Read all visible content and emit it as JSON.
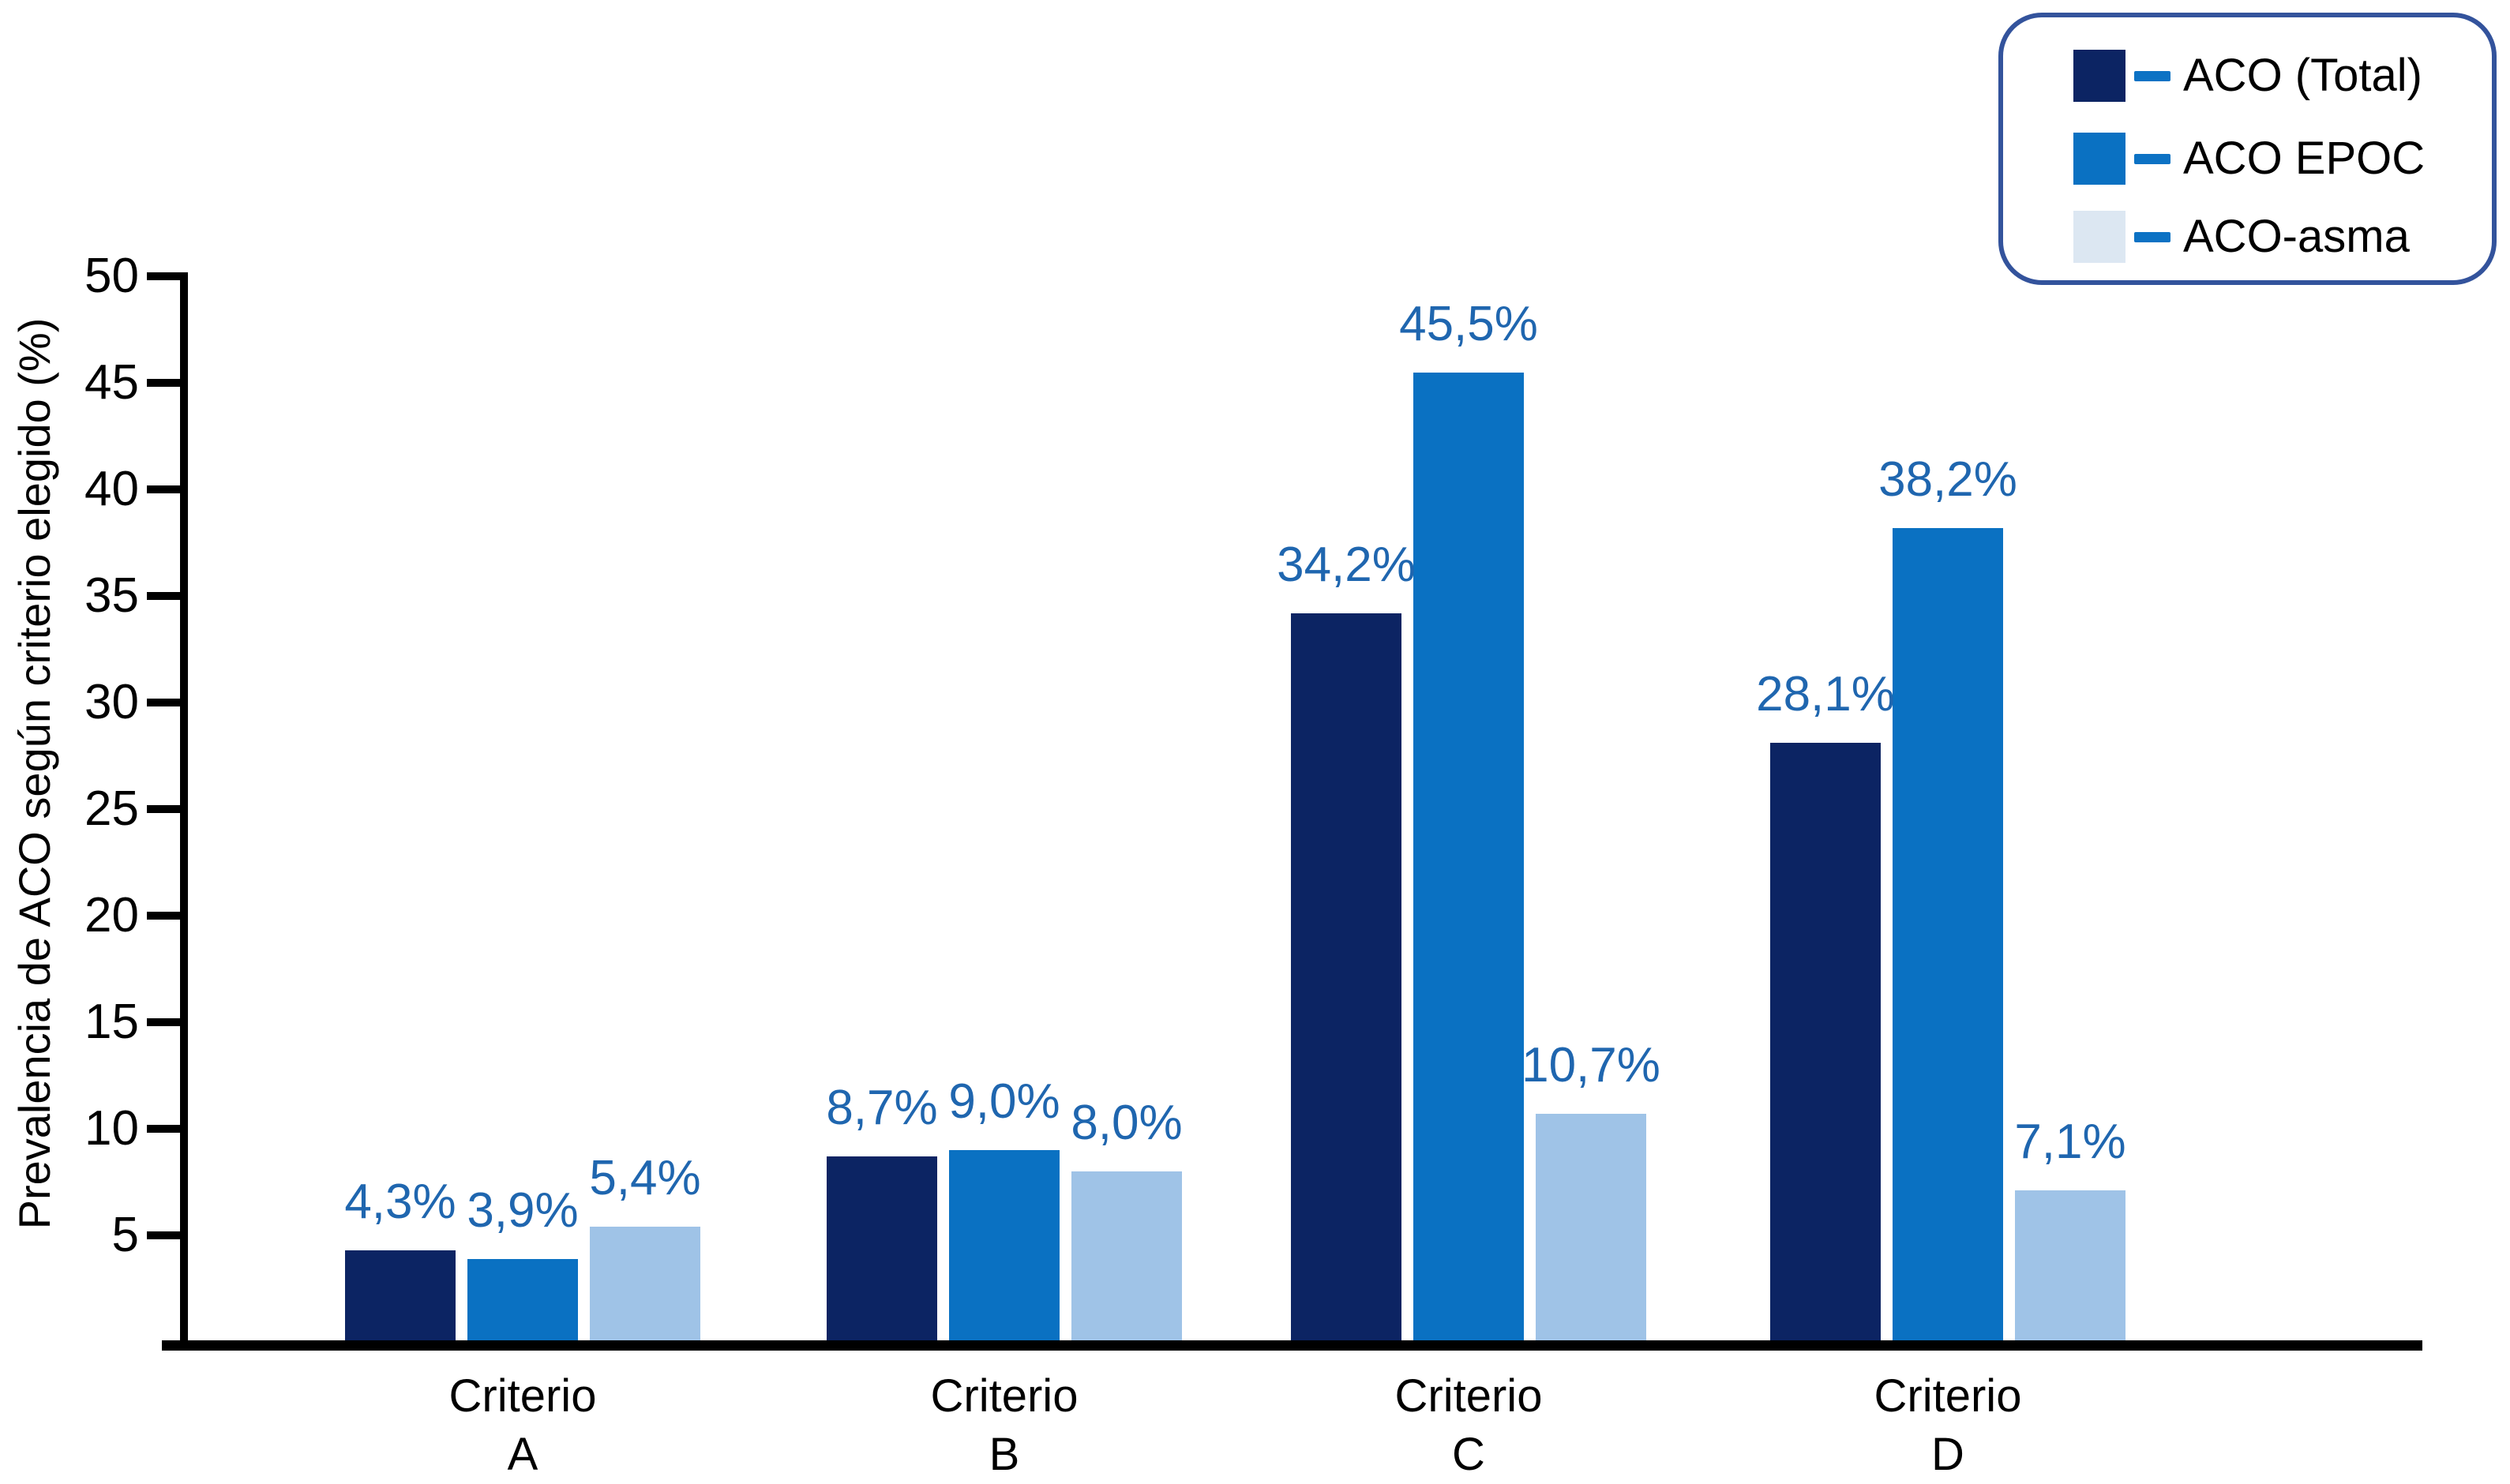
{
  "chart_data": {
    "type": "bar",
    "title": "",
    "xlabel": "",
    "ylabel": "Prevalencia de ACO según criterio elegido (%)",
    "ylim": [
      0,
      50
    ],
    "yticks": [
      5,
      10,
      15,
      20,
      25,
      30,
      35,
      40,
      45,
      50
    ],
    "grid": false,
    "legend_position": "top-right",
    "categories": [
      {
        "line1": "Criterio",
        "line2": "A"
      },
      {
        "line1": "Criterio",
        "line2": "B"
      },
      {
        "line1": "Criterio",
        "line2": "C"
      },
      {
        "line1": "Criterio",
        "line2": "D"
      }
    ],
    "series": [
      {
        "name": "ACO (Total)",
        "values": [
          4.3,
          8.7,
          34.2,
          28.1
        ],
        "labels": [
          "4,3%",
          "8,7%",
          "34,2%",
          "28,1%"
        ],
        "bar_color": "#0c2463",
        "legend_swatch_color": "#0c2463"
      },
      {
        "name": "ACO EPOC",
        "values": [
          3.9,
          9.0,
          45.5,
          38.2
        ],
        "labels": [
          "3,9%",
          "9,0%",
          "45,5%",
          "38,2%"
        ],
        "bar_color": "#0a71c2",
        "legend_swatch_color": "#0a71c2"
      },
      {
        "name": "ACO-asma",
        "values": [
          5.4,
          8.0,
          10.7,
          7.1
        ],
        "labels": [
          "5,4%",
          "8,0%",
          "10,7%",
          "7,1%"
        ],
        "bar_color": "#9fc3e7",
        "legend_swatch_color": "#dce7f2"
      }
    ],
    "colors": {
      "value_label": "#1f66af",
      "axis": "#000000",
      "legend_border": "#33539c",
      "legend_dash": "#0c72c4"
    }
  }
}
